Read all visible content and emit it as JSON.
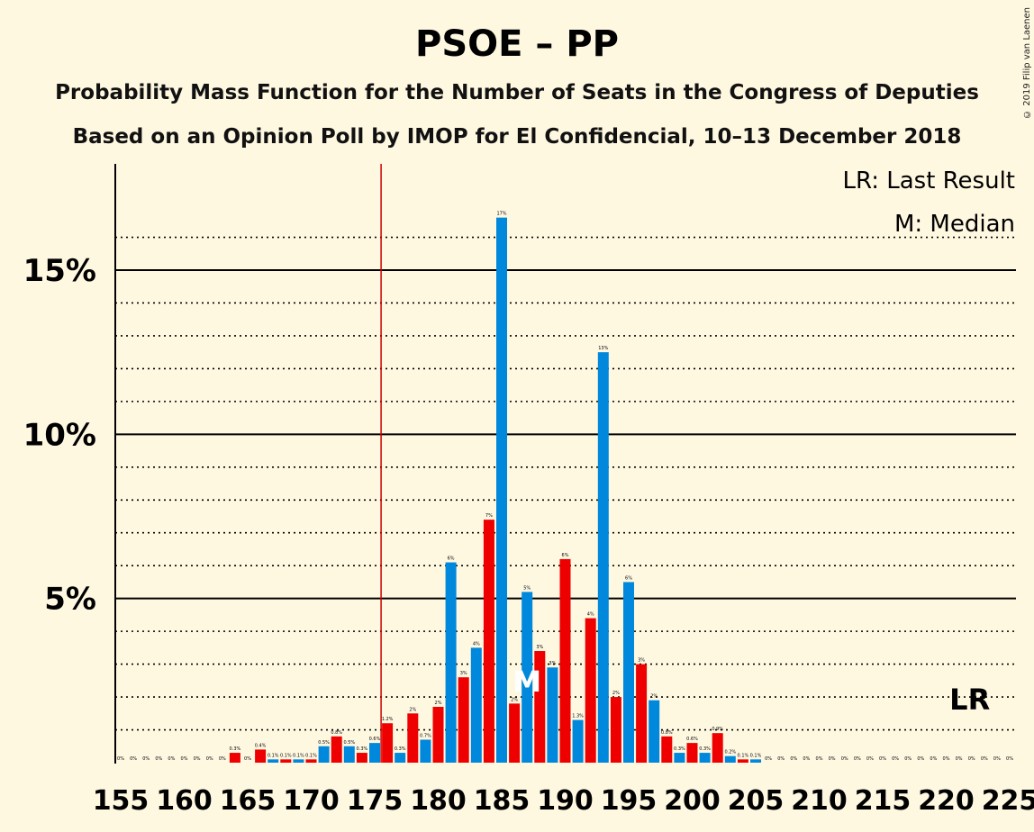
{
  "title": "PSOE – PP",
  "subtitle": "Probability Mass Function for the Number of Seats in the Congress of Deputies",
  "subtitle2": "Based on an Opinion Poll by IMOP for El Confidencial, 10–13 December 2018",
  "copyright": "© 2019 Filip van Laenen",
  "legend": {
    "lr": "LR: Last Result",
    "m": "M: Median"
  },
  "colors": {
    "blue": "#0088dd",
    "red": "#ee0000",
    "background": "#fff8e1",
    "majority_line": "#cc0000"
  },
  "chart_data": {
    "type": "bar",
    "xlim": [
      155,
      225
    ],
    "ylim": [
      0,
      18
    ],
    "y_ticks": [
      0,
      5,
      10,
      15
    ],
    "y_tick_labels": [
      "5%",
      "10%",
      "15%"
    ],
    "x_tick_labels": [
      "155",
      "160",
      "165",
      "170",
      "175",
      "180",
      "185",
      "190",
      "195",
      "200",
      "205",
      "210",
      "215",
      "220",
      "225"
    ],
    "majority_line": 176,
    "median": 187,
    "last_result": 222,
    "median_marker": "M",
    "last_result_marker": "LR",
    "seats": [
      155,
      156,
      157,
      158,
      159,
      160,
      161,
      162,
      163,
      164,
      165,
      166,
      167,
      168,
      169,
      170,
      171,
      172,
      173,
      174,
      175,
      176,
      177,
      178,
      179,
      180,
      181,
      182,
      183,
      184,
      185,
      186,
      187,
      188,
      189,
      190,
      191,
      192,
      193,
      194,
      195,
      196,
      197,
      198,
      199,
      200,
      201,
      202,
      203,
      204,
      205,
      206,
      207,
      208,
      209,
      210,
      211,
      212,
      213,
      214,
      215,
      216,
      217,
      218,
      219,
      220,
      221,
      222,
      223,
      224,
      225
    ],
    "values": [
      0,
      0,
      0,
      0,
      0,
      0,
      0,
      0,
      0,
      0.3,
      0,
      0.4,
      0.1,
      0.1,
      0.1,
      0.1,
      0.5,
      0.8,
      0.5,
      0.3,
      0.6,
      1.2,
      0.3,
      1.5,
      0.7,
      1.7,
      6.1,
      2.6,
      3.5,
      7.4,
      16.6,
      1.8,
      5.2,
      3.4,
      2.9,
      6.2,
      1.3,
      4.4,
      12.5,
      2.0,
      5.5,
      3.0,
      1.9,
      0.8,
      0.3,
      0.6,
      0.3,
      0.9,
      0.2,
      0.1,
      0.1,
      0,
      0,
      0,
      0,
      0,
      0,
      0,
      0,
      0,
      0,
      0,
      0,
      0,
      0,
      0,
      0,
      0,
      0,
      0,
      0
    ],
    "labels": [
      "0%",
      "0%",
      "0%",
      "0%",
      "0%",
      "0%",
      "0%",
      "0%",
      "0%",
      "0.3%",
      "0%",
      "0.4%",
      "0.1%",
      "0.1%",
      "0.1%",
      "0.1%",
      "0.5%",
      "0.8%",
      "0.5%",
      "0.3%",
      "0.6%",
      "1.2%",
      "0.3%",
      "2%",
      "0.7%",
      "2%",
      "6%",
      "3%",
      "4%",
      "7%",
      "17%",
      "2%",
      "5%",
      "3%",
      "3%",
      "6%",
      "1.3%",
      "4%",
      "13%",
      "2%",
      "6%",
      "3%",
      "2%",
      "0.8%",
      "0.3%",
      "0.6%",
      "0.3%",
      "0.9%",
      "0.2%",
      "0.1%",
      "0.1%",
      "0%",
      "0%",
      "0%",
      "0%",
      "0%",
      "0%",
      "0%",
      "0%",
      "0%",
      "0%",
      "0%",
      "0%",
      "0%",
      "0%",
      "0%",
      "0%",
      "0%",
      "0%",
      "0%",
      "0%"
    ]
  }
}
